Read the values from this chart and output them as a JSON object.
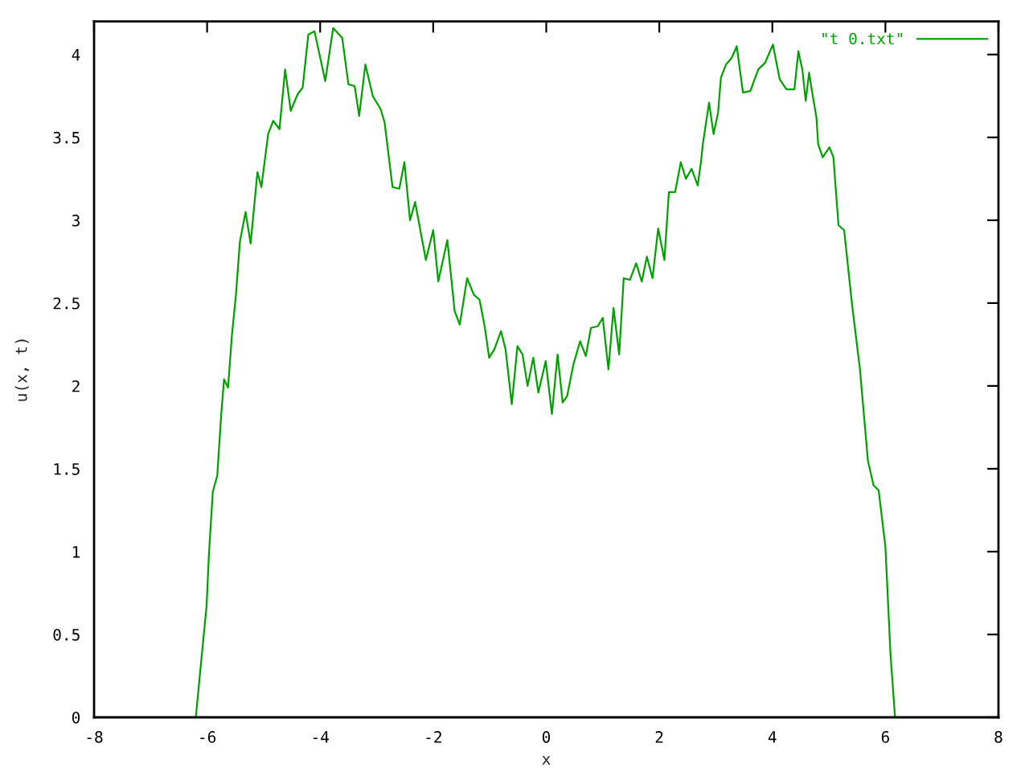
{
  "chart_data": {
    "type": "line",
    "xlabel": "x",
    "ylabel": "u(x, t)",
    "xlim": [
      -8,
      8
    ],
    "ylim": [
      0,
      4.2
    ],
    "xticks": [
      -8,
      -6,
      -4,
      -2,
      0,
      2,
      4,
      6,
      8
    ],
    "yticks": [
      0,
      0.5,
      1,
      1.5,
      2,
      2.5,
      3,
      3.5,
      4
    ],
    "grid": false,
    "legend": "top right",
    "line_style": "solid",
    "series": [
      {
        "name": "\"t 0.txt\"",
        "color": "#00a000",
        "x": [
          -8,
          -6.2,
          -6.11,
          -6.01,
          -5.97,
          -5.9,
          -5.82,
          -5.75,
          -5.7,
          -5.63,
          -5.56,
          -5.49,
          -5.42,
          -5.32,
          -5.23,
          -5.11,
          -5.04,
          -4.92,
          -4.83,
          -4.72,
          -4.62,
          -4.52,
          -4.4,
          -4.31,
          -4.21,
          -4.1,
          -3.91,
          -3.77,
          -3.61,
          -3.5,
          -3.39,
          -3.31,
          -3.2,
          -3.07,
          -2.93,
          -2.86,
          -2.72,
          -2.6,
          -2.51,
          -2.41,
          -2.32,
          -2.13,
          -2.0,
          -1.91,
          -1.75,
          -1.62,
          -1.53,
          -1.4,
          -1.28,
          -1.18,
          -1.09,
          -1.01,
          -0.92,
          -0.8,
          -0.72,
          -0.61,
          -0.51,
          -0.42,
          -0.33,
          -0.23,
          -0.14,
          -0.01,
          0.1,
          0.2,
          0.29,
          0.37,
          0.48,
          0.6,
          0.7,
          0.79,
          0.91,
          1.0,
          1.1,
          1.19,
          1.29,
          1.37,
          1.48,
          1.59,
          1.69,
          1.78,
          1.88,
          1.98,
          2.09,
          2.17,
          2.28,
          2.38,
          2.47,
          2.57,
          2.68,
          2.74,
          2.77,
          2.88,
          2.96,
          3.04,
          3.09,
          3.18,
          3.28,
          3.37,
          3.48,
          3.61,
          3.75,
          3.87,
          4.01,
          4.13,
          4.25,
          4.39,
          4.46,
          4.53,
          4.59,
          4.65,
          4.7,
          4.78,
          4.81,
          4.89,
          5.01,
          5.08,
          5.17,
          5.27,
          5.41,
          5.55,
          5.69,
          5.79,
          5.88,
          6.0,
          6.09,
          6.17,
          8
        ],
        "values": [
          0,
          0,
          0.32,
          0.67,
          0.97,
          1.36,
          1.46,
          1.83,
          2.04,
          1.99,
          2.31,
          2.55,
          2.87,
          3.05,
          2.86,
          3.29,
          3.2,
          3.52,
          3.6,
          3.55,
          3.91,
          3.66,
          3.76,
          3.8,
          4.12,
          4.14,
          3.84,
          4.16,
          4.1,
          3.82,
          3.81,
          3.63,
          3.94,
          3.75,
          3.67,
          3.59,
          3.2,
          3.19,
          3.35,
          3.0,
          3.11,
          2.76,
          2.94,
          2.63,
          2.88,
          2.45,
          2.37,
          2.65,
          2.55,
          2.52,
          2.36,
          2.17,
          2.22,
          2.33,
          2.22,
          1.89,
          2.24,
          2.19,
          2.0,
          2.17,
          1.96,
          2.15,
          1.83,
          2.19,
          1.9,
          1.94,
          2.13,
          2.27,
          2.18,
          2.35,
          2.36,
          2.41,
          2.1,
          2.47,
          2.19,
          2.65,
          2.64,
          2.74,
          2.63,
          2.78,
          2.65,
          2.95,
          2.76,
          3.17,
          3.17,
          3.35,
          3.25,
          3.31,
          3.21,
          3.36,
          3.46,
          3.71,
          3.52,
          3.65,
          3.86,
          3.94,
          3.98,
          4.05,
          3.77,
          3.78,
          3.91,
          3.95,
          4.06,
          3.85,
          3.79,
          3.79,
          4.02,
          3.91,
          3.72,
          3.89,
          3.78,
          3.62,
          3.46,
          3.38,
          3.44,
          3.38,
          2.97,
          2.94,
          2.49,
          2.1,
          1.55,
          1.4,
          1.37,
          1.03,
          0.38,
          0,
          0
        ]
      }
    ]
  }
}
